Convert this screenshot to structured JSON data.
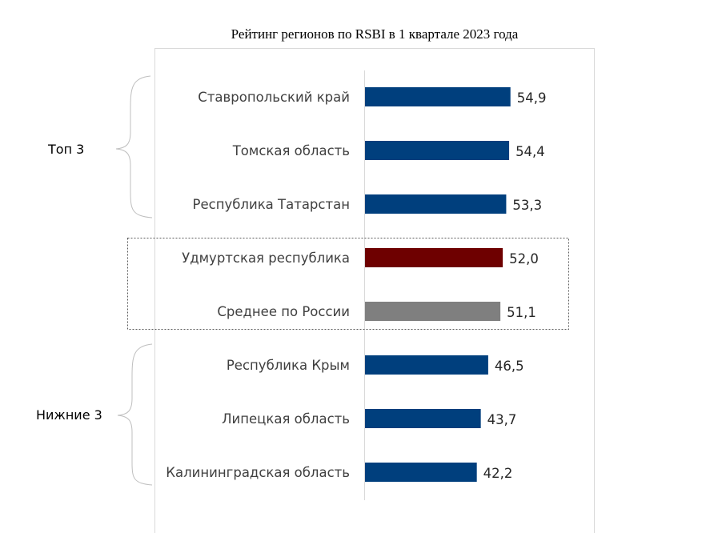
{
  "chart_data": {
    "type": "bar",
    "orientation": "horizontal",
    "title": "Рейтинг регионов по RSBI в 1 квартале 2023 года",
    "categories": [
      "Ставропольский край",
      "Томская область",
      "Республика Татарстан",
      "Удмуртская республика",
      "Среднее по России",
      "Республика Крым",
      "Липецкая область",
      "Калининградская область"
    ],
    "values": [
      54.9,
      54.4,
      53.3,
      52.0,
      51.1,
      46.5,
      43.7,
      42.2
    ],
    "value_labels": [
      "54,9",
      "54,4",
      "53,3",
      "52,0",
      "51,1",
      "46,5",
      "43,7",
      "42,2"
    ],
    "colors": [
      "#003f7d",
      "#003f7d",
      "#003f7d",
      "#6e0000",
      "#7f7f7f",
      "#003f7d",
      "#003f7d",
      "#003f7d"
    ],
    "xlim": [
      0,
      60
    ],
    "grid": false,
    "groups": [
      {
        "label": "Топ 3",
        "members": [
          0,
          1,
          2
        ]
      },
      {
        "label": "Нижние 3",
        "members": [
          5,
          6,
          7
        ]
      }
    ],
    "highlight_box_members": [
      3,
      4
    ]
  }
}
